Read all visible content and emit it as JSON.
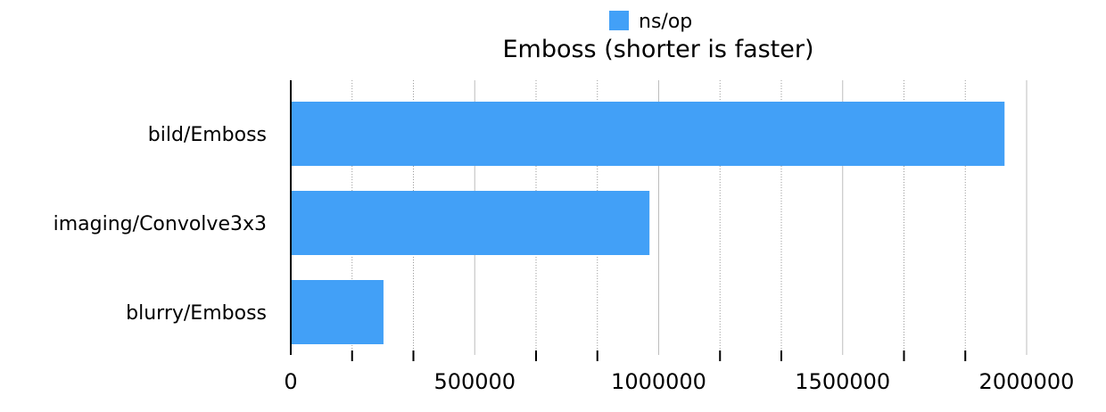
{
  "chart_data": {
    "type": "bar",
    "orientation": "horizontal",
    "title": "Emboss (shorter is faster)",
    "xlabel": "",
    "ylabel": "",
    "categories": [
      "bild/Emboss",
      "imaging/Convolve3x3",
      "blurry/Emboss"
    ],
    "series": [
      {
        "name": "ns/op",
        "values": [
          1940000,
          975000,
          252000
        ],
        "color": "#42a0f7"
      }
    ],
    "xlim": [
      0,
      2000000
    ],
    "xticks": [
      0,
      500000,
      1000000,
      1500000,
      2000000
    ],
    "tick_labels": [
      "0",
      "500000",
      "1000000",
      "1500000",
      "2000000"
    ],
    "minor_tick_step": 166666.67,
    "grid": true,
    "legend": "top-center"
  }
}
